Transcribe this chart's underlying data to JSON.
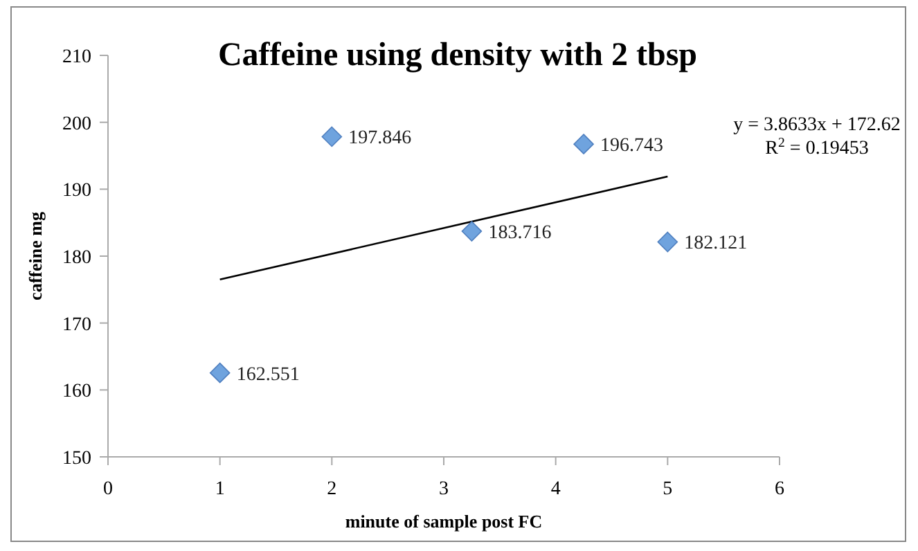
{
  "chart_data": {
    "type": "scatter",
    "title": "Caffeine using density with 2 tbsp",
    "xlabel": "minute of sample post FC",
    "ylabel": "caffeine mg",
    "xlim": [
      0,
      6
    ],
    "xticks": [
      0,
      1,
      2,
      3,
      4,
      5,
      6
    ],
    "ylim": [
      150,
      210
    ],
    "yticks": [
      150,
      160,
      170,
      180,
      190,
      200,
      210
    ],
    "grid": false,
    "series": [
      {
        "color": "#6fa3de",
        "marker": "diamond",
        "x": [
          1,
          2,
          3.25,
          4.25,
          5
        ],
        "values": [
          162.551,
          197.846,
          183.716,
          196.743,
          182.121
        ],
        "data_labels": true
      },
      {
        "type": "line",
        "color": "#000000",
        "x": [
          1,
          5
        ],
        "values": [
          176.5,
          191.9
        ]
      }
    ],
    "annotations": [
      "y = 3.8633x + 172.62",
      "R$^{2}$ = 0.19453"
    ]
  }
}
